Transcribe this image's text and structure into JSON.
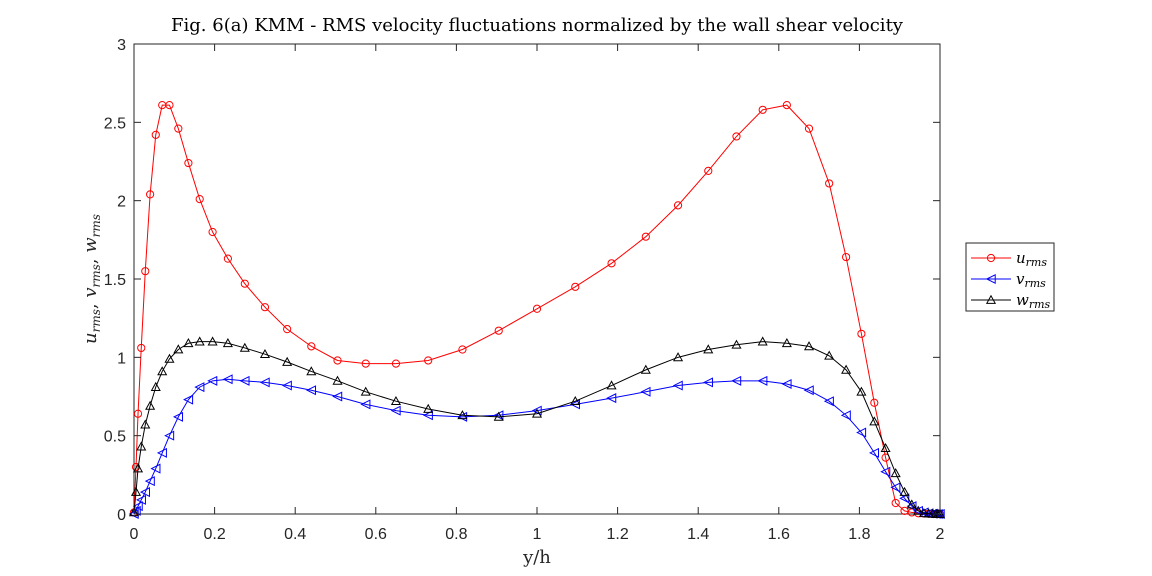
{
  "chart_data": {
    "type": "line",
    "title": "Fig. 6(a) KMM - RMS velocity fluctuations normalized by the wall shear velocity",
    "xlabel": "y/h",
    "ylabel": "u_rms, v_rms, w_rms",
    "ylabel_parts": {
      "u": "u",
      "v": "v",
      "w": "w",
      "sub": "rms",
      "sep": ", "
    },
    "xlim": [
      0,
      2
    ],
    "ylim": [
      0,
      3
    ],
    "xticks": [
      "0",
      "0.2",
      "0.4",
      "0.6",
      "0.8",
      "1",
      "1.2",
      "1.4",
      "1.6",
      "1.8",
      "2"
    ],
    "yticks": [
      "0",
      "0.5",
      "1",
      "1.5",
      "2",
      "2.5",
      "3"
    ],
    "grid": false,
    "legend_position": "outside-right",
    "series": [
      {
        "name": "u_rms",
        "label_main": "u",
        "label_sub": "rms",
        "color": "#ff0000",
        "marker": "circle",
        "x": [
          0,
          0.005,
          0.01,
          0.018,
          0.028,
          0.04,
          0.054,
          0.07,
          0.088,
          0.11,
          0.135,
          0.163,
          0.195,
          0.233,
          0.275,
          0.325,
          0.38,
          0.44,
          0.505,
          0.575,
          0.65,
          0.73,
          0.815,
          0.905,
          1.0,
          1.095,
          1.185,
          1.27,
          1.35,
          1.425,
          1.495,
          1.56,
          1.62,
          1.675,
          1.725,
          1.767,
          1.805,
          1.837,
          1.865,
          1.89,
          1.912,
          1.93,
          1.946,
          1.96,
          1.972,
          1.982,
          1.99,
          1.995,
          2.0
        ],
        "y": [
          0.01,
          0.3,
          0.64,
          1.06,
          1.55,
          2.04,
          2.42,
          2.61,
          2.61,
          2.46,
          2.24,
          2.01,
          1.8,
          1.63,
          1.47,
          1.32,
          1.18,
          1.07,
          0.98,
          0.96,
          0.96,
          0.98,
          1.05,
          1.17,
          1.31,
          1.45,
          1.6,
          1.77,
          1.97,
          2.19,
          2.41,
          2.58,
          2.61,
          2.46,
          2.11,
          1.64,
          1.15,
          0.71,
          0.36,
          0.07,
          0.02,
          0.01,
          0.005,
          0.003,
          0.002,
          0.001,
          0.0,
          0.0,
          0.0
        ]
      },
      {
        "name": "v_rms",
        "label_main": "v",
        "label_sub": "rms",
        "color": "#0000ff",
        "marker": "triangle-left",
        "x": [
          0,
          0.005,
          0.01,
          0.018,
          0.028,
          0.04,
          0.054,
          0.07,
          0.088,
          0.11,
          0.135,
          0.163,
          0.195,
          0.233,
          0.275,
          0.325,
          0.38,
          0.44,
          0.505,
          0.575,
          0.65,
          0.73,
          0.815,
          0.905,
          1.0,
          1.095,
          1.185,
          1.27,
          1.35,
          1.425,
          1.495,
          1.56,
          1.62,
          1.675,
          1.725,
          1.767,
          1.805,
          1.837,
          1.865,
          1.89,
          1.912,
          1.93,
          1.946,
          1.96,
          1.972,
          1.982,
          1.99,
          1.995,
          2.0
        ],
        "y": [
          0.0,
          0.02,
          0.05,
          0.09,
          0.14,
          0.21,
          0.29,
          0.39,
          0.5,
          0.62,
          0.73,
          0.81,
          0.85,
          0.86,
          0.85,
          0.84,
          0.82,
          0.79,
          0.75,
          0.7,
          0.66,
          0.63,
          0.62,
          0.63,
          0.66,
          0.7,
          0.74,
          0.78,
          0.82,
          0.84,
          0.85,
          0.85,
          0.83,
          0.79,
          0.72,
          0.63,
          0.52,
          0.39,
          0.27,
          0.17,
          0.1,
          0.05,
          0.02,
          0.01,
          0.005,
          0.002,
          0.001,
          0.0,
          0.0
        ]
      },
      {
        "name": "w_rms",
        "label_main": "w",
        "label_sub": "rms",
        "color": "#000000",
        "marker": "triangle-up",
        "x": [
          0,
          0.005,
          0.01,
          0.018,
          0.028,
          0.04,
          0.054,
          0.07,
          0.088,
          0.11,
          0.135,
          0.163,
          0.195,
          0.233,
          0.275,
          0.325,
          0.38,
          0.44,
          0.505,
          0.575,
          0.65,
          0.73,
          0.815,
          0.905,
          1.0,
          1.095,
          1.185,
          1.27,
          1.35,
          1.425,
          1.495,
          1.56,
          1.62,
          1.675,
          1.725,
          1.767,
          1.805,
          1.837,
          1.865,
          1.89,
          1.912,
          1.93,
          1.946,
          1.96,
          1.972,
          1.982,
          1.99,
          1.995,
          2.0
        ],
        "y": [
          0.01,
          0.14,
          0.29,
          0.43,
          0.57,
          0.69,
          0.81,
          0.91,
          0.99,
          1.05,
          1.09,
          1.1,
          1.1,
          1.09,
          1.06,
          1.02,
          0.97,
          0.91,
          0.85,
          0.78,
          0.72,
          0.67,
          0.63,
          0.62,
          0.64,
          0.72,
          0.82,
          0.92,
          1.0,
          1.05,
          1.08,
          1.1,
          1.09,
          1.07,
          1.01,
          0.92,
          0.78,
          0.59,
          0.42,
          0.26,
          0.14,
          0.06,
          0.02,
          0.005,
          0.002,
          0.001,
          0.0,
          0.0,
          0.0
        ]
      }
    ]
  }
}
